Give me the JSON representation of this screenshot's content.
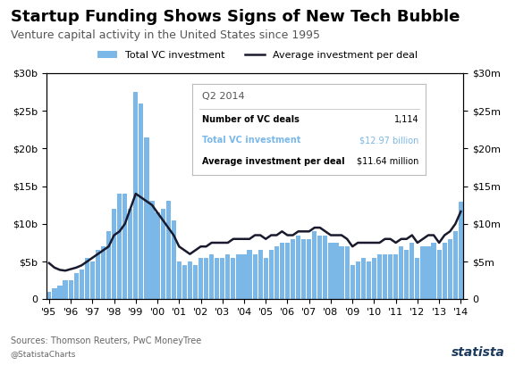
{
  "chart_data": {
    "type": "bar",
    "title": "Startup Funding Shows Signs of New Tech Bubble",
    "subtitle": "Venture capital activity in the United States since 1995",
    "source": "Sources: Thomson Reuters, PwC MoneyTree",
    "footer": [
      "@StatistaCharts",
      "statista"
    ],
    "categories": [
      "'95",
      null,
      null,
      null,
      "'96",
      null,
      null,
      null,
      "'97",
      null,
      null,
      null,
      "'98",
      null,
      null,
      null,
      "'99",
      null,
      null,
      null,
      "'00",
      null,
      null,
      null,
      "'01",
      null,
      null,
      null,
      "'02",
      null,
      null,
      null,
      "'03",
      null,
      null,
      null,
      "'04",
      null,
      null,
      null,
      "'05",
      null,
      null,
      null,
      "'06",
      null,
      null,
      null,
      "'07",
      null,
      null,
      null,
      "'08",
      null,
      null,
      null,
      "'09",
      null,
      null,
      null,
      "'10",
      null,
      null,
      null,
      "'11",
      null,
      null,
      null,
      "'12",
      null,
      null,
      null,
      "'13",
      null,
      null,
      null,
      "'14"
    ],
    "series": [
      {
        "name": "Total VC investment",
        "type": "bar",
        "color": "#7BB8E8",
        "values": [
          1.0,
          1.5,
          1.8,
          2.5,
          2.5,
          3.5,
          4.0,
          5.5,
          5.0,
          6.5,
          7.0,
          9.0,
          12.0,
          14.0,
          14.0,
          12.0,
          27.5,
          26.0,
          21.5,
          13.0,
          11.5,
          12.0,
          13.0,
          10.5,
          5.0,
          4.5,
          5.0,
          4.5,
          5.5,
          5.5,
          6.0,
          5.5,
          5.5,
          6.0,
          5.5,
          6.0,
          6.0,
          6.5,
          6.0,
          6.5,
          5.5,
          6.5,
          7.0,
          7.5,
          7.5,
          8.0,
          8.5,
          8.0,
          8.0,
          9.0,
          8.5,
          8.5,
          7.5,
          7.5,
          7.0,
          7.0,
          4.5,
          5.0,
          5.5,
          5.0,
          5.5,
          6.0,
          6.0,
          6.0,
          6.0,
          7.0,
          6.5,
          7.5,
          5.5,
          7.0,
          7.0,
          7.5,
          6.5,
          7.5,
          8.0,
          9.0,
          12.97
        ]
      },
      {
        "name": "Average investment per deal",
        "type": "line",
        "color": "#1a1a2e",
        "axis": "y2",
        "values": [
          4.8,
          4.2,
          3.9,
          3.8,
          4.0,
          4.2,
          4.5,
          5.0,
          5.5,
          6.0,
          6.5,
          7.0,
          8.5,
          9.0,
          10.0,
          12.0,
          14.0,
          13.5,
          13.0,
          12.5,
          11.5,
          10.5,
          9.5,
          8.5,
          7.0,
          6.5,
          6.0,
          6.5,
          7.0,
          7.0,
          7.5,
          7.5,
          7.5,
          7.5,
          8.0,
          8.0,
          8.0,
          8.0,
          8.5,
          8.5,
          8.0,
          8.5,
          8.5,
          9.0,
          8.5,
          8.5,
          9.0,
          9.0,
          9.0,
          9.5,
          9.5,
          9.0,
          8.5,
          8.5,
          8.5,
          8.0,
          7.0,
          7.5,
          7.5,
          7.5,
          7.5,
          7.5,
          8.0,
          8.0,
          7.5,
          8.0,
          8.0,
          8.5,
          7.5,
          8.0,
          8.5,
          8.5,
          7.5,
          8.5,
          9.0,
          10.0,
          11.64
        ]
      }
    ],
    "ylim": [
      0,
      30
    ],
    "yticks": [
      0,
      {
        "value": 5,
        "label": "$5b"
      },
      {
        "value": 10,
        "label": "$10b"
      },
      {
        "value": 15,
        "label": "$15b"
      },
      {
        "value": 20,
        "label": "$20b"
      },
      {
        "value": 25,
        "label": "$25b"
      },
      {
        "value": 30,
        "label": "$30b"
      }
    ],
    "y2lim": [
      0,
      30
    ],
    "y2ticks": [
      0,
      {
        "value": 5,
        "label": "$5m"
      },
      {
        "value": 10,
        "label": "$10m"
      },
      {
        "value": 15,
        "label": "$15m"
      },
      {
        "value": 20,
        "label": "$20m"
      },
      {
        "value": 25,
        "label": "$25m"
      },
      {
        "value": 30,
        "label": "$30m"
      }
    ],
    "grid": false,
    "legend": "upper center",
    "annotation": {
      "heading": "Q2 2014",
      "rows": [
        [
          "Number of VC deals",
          "1,114"
        ],
        [
          "Total VC investment",
          "$12.97 billion"
        ],
        [
          "Average investment per deal",
          "$11.64 million"
        ]
      ]
    }
  }
}
